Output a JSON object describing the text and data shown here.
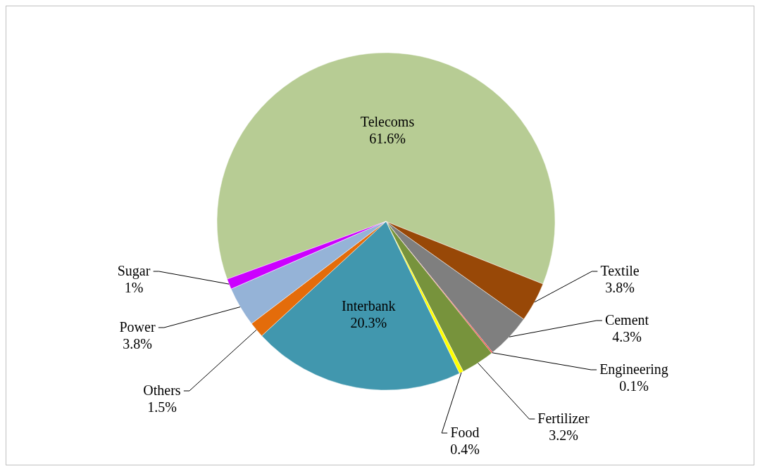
{
  "chart_data": {
    "type": "pie",
    "categories": [
      "Telecoms",
      "Textile",
      "Cement",
      "Engineering",
      "Fertilizer",
      "Food",
      "Interbank",
      "Others",
      "Power",
      "Sugar"
    ],
    "values": [
      61.6,
      3.8,
      4.3,
      0.1,
      3.2,
      0.4,
      20.3,
      1.5,
      3.8,
      1
    ],
    "colors": [
      "#b7cc94",
      "#984807",
      "#7f7f7f",
      "#ff0000",
      "#77933c",
      "#ffff00",
      "#4197ae",
      "#e46c0a",
      "#95b3d7",
      "#cc00ff"
    ],
    "value_labels": [
      "61.6%",
      "3.8%",
      "4.3%",
      "0.1%",
      "3.2%",
      "0.4%",
      "20.3%",
      "1.5%",
      "3.8%",
      "1%"
    ]
  }
}
